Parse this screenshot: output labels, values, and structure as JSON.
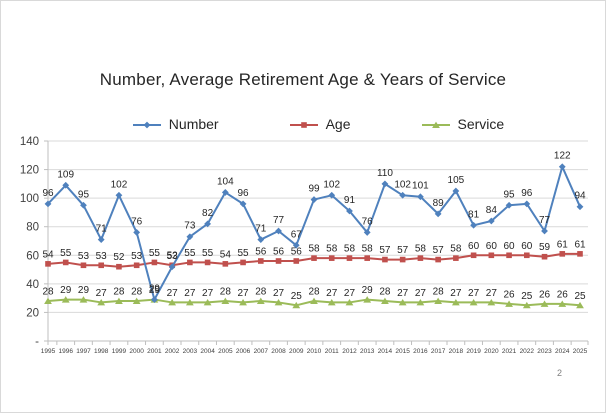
{
  "slide": {
    "page_number": "2"
  },
  "chart_data": {
    "type": "line",
    "title": "Number, Average Retirement Age & Years of Service",
    "categories": [
      "1995",
      "1996",
      "1997",
      "1998",
      "1999",
      "2000",
      "2001",
      "2002",
      "2003",
      "2004",
      "2005",
      "2006",
      "2007",
      "2008",
      "2009",
      "2010",
      "2011",
      "2012",
      "2013",
      "2014",
      "2015",
      "2016",
      "2017",
      "2018",
      "2019",
      "2020",
      "2021",
      "2022",
      "2023",
      "2024",
      "2025"
    ],
    "series": [
      {
        "name": "Number",
        "color": "#4F81BD",
        "marker": "diamond",
        "values": [
          96,
          109,
          95,
          71,
          102,
          76,
          29,
          52,
          73,
          82,
          104,
          96,
          71,
          77,
          67,
          99,
          102,
          91,
          76,
          110,
          102,
          101,
          89,
          105,
          81,
          84,
          95,
          96,
          77,
          122,
          94
        ]
      },
      {
        "name": "Age",
        "color": "#C0504D",
        "marker": "square",
        "values": [
          54,
          55,
          53,
          53,
          52,
          53,
          55,
          53,
          55,
          55,
          54,
          55,
          56,
          56,
          56,
          58,
          58,
          58,
          58,
          57,
          57,
          58,
          57,
          58,
          60,
          60,
          60,
          60,
          59,
          61,
          61
        ]
      },
      {
        "name": "Service",
        "color": "#9BBB59",
        "marker": "triangle",
        "values": [
          28,
          29,
          29,
          27,
          28,
          28,
          29,
          27,
          27,
          27,
          28,
          27,
          28,
          27,
          25,
          28,
          27,
          27,
          29,
          28,
          27,
          27,
          28,
          27,
          27,
          27,
          26,
          25,
          26,
          26,
          25
        ]
      }
    ],
    "ylim": [
      0,
      140
    ],
    "ytick_step": 20,
    "ytick_labels": [
      "-",
      "20",
      "40",
      "60",
      "80",
      "100",
      "120",
      "140"
    ],
    "grid": true,
    "legend_position": "top",
    "data_labels": true,
    "colors": {
      "gridline": "#d9d9d9",
      "axis_line": "#bfbfbf",
      "axis_text": "#404040",
      "data_label_text": "#262626"
    }
  }
}
